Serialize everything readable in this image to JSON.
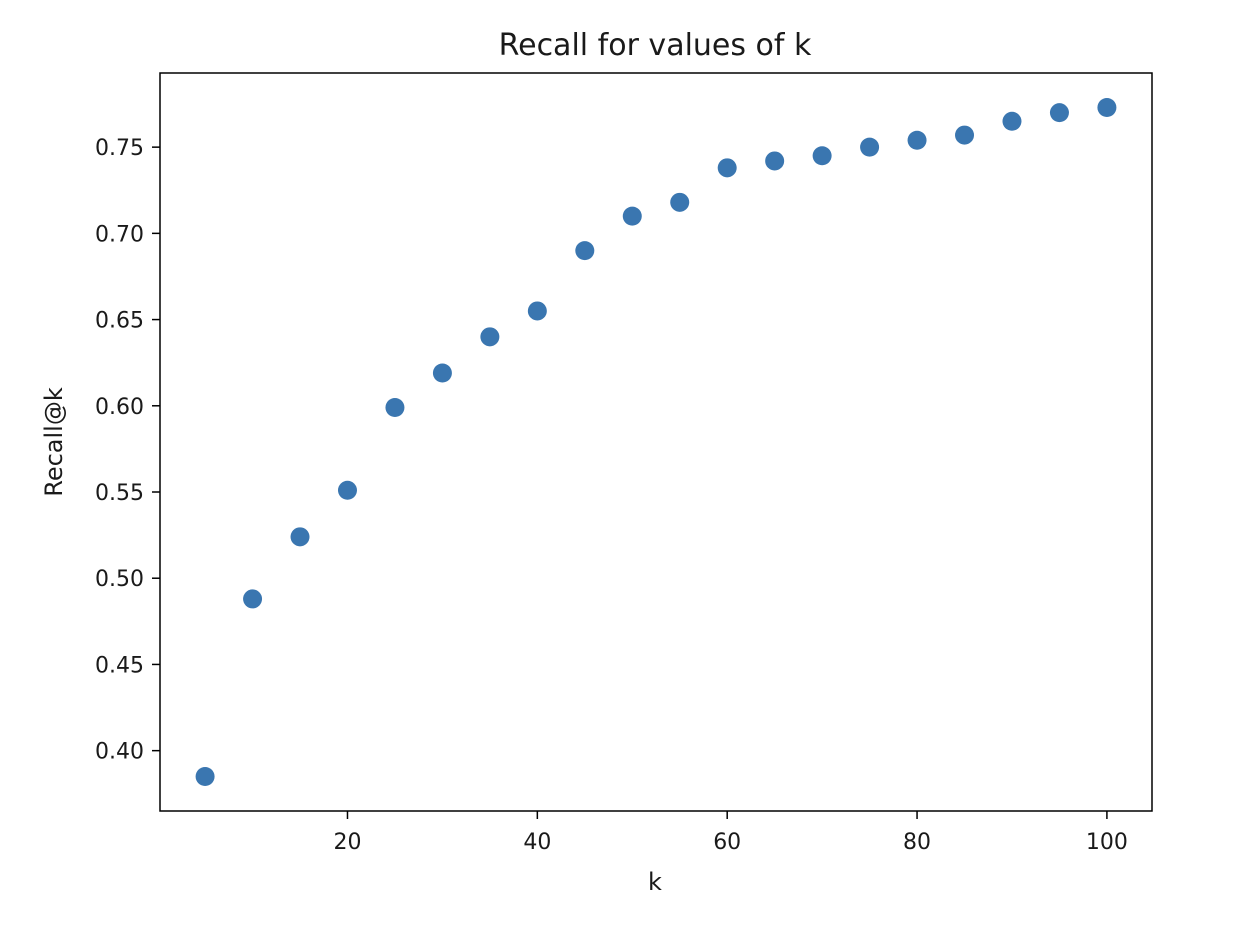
{
  "chart_data": {
    "type": "scatter",
    "title": "Recall for values of k",
    "xlabel": "k",
    "ylabel": "Recall@k",
    "xlim": [
      0.25,
      104.75
    ],
    "ylim": [
      0.365,
      0.793
    ],
    "xticks": [
      20,
      40,
      60,
      80,
      100
    ],
    "yticks": [
      0.4,
      0.45,
      0.5,
      0.55,
      0.6,
      0.65,
      0.7,
      0.75
    ],
    "xtick_labels": [
      "20",
      "40",
      "60",
      "80",
      "100"
    ],
    "ytick_labels": [
      "0.40",
      "0.45",
      "0.50",
      "0.55",
      "0.60",
      "0.65",
      "0.70",
      "0.75"
    ],
    "grid": false,
    "marker_color": "#3a76b0",
    "series": [
      {
        "x": [
          5,
          10,
          15,
          20,
          25,
          30,
          35,
          40,
          45,
          50,
          55,
          60,
          65,
          70,
          75,
          80,
          85,
          90,
          95,
          100
        ],
        "y": [
          0.385,
          0.488,
          0.524,
          0.551,
          0.599,
          0.619,
          0.64,
          0.655,
          0.69,
          0.71,
          0.718,
          0.738,
          0.742,
          0.745,
          0.75,
          0.754,
          0.757,
          0.765,
          0.77,
          0.773
        ]
      }
    ]
  }
}
